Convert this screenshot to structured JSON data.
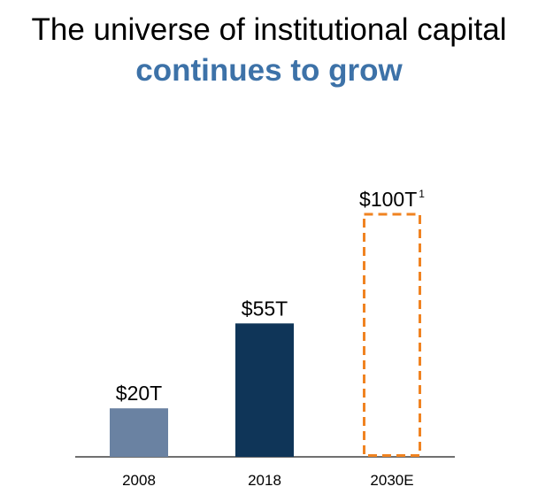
{
  "title": {
    "line1": "The universe of institutional capital",
    "line2": "continues to grow"
  },
  "colors": {
    "title_accent": "#3d72a8",
    "bar_2008": "#6a82a2",
    "bar_2018": "#0f3558",
    "estimate_outline": "#f08321",
    "axis": "#404040"
  },
  "chart_data": {
    "type": "bar",
    "categories": [
      "2008",
      "2018",
      "2030E"
    ],
    "values": [
      20,
      55,
      100
    ],
    "data_labels": [
      "$20T",
      "$55T",
      "$100T"
    ],
    "footnote_markers": [
      "",
      "",
      "1"
    ],
    "estimated": [
      false,
      false,
      true
    ],
    "ylim": [
      0,
      100
    ],
    "grid": false,
    "xlabel": "",
    "ylabel": ""
  }
}
